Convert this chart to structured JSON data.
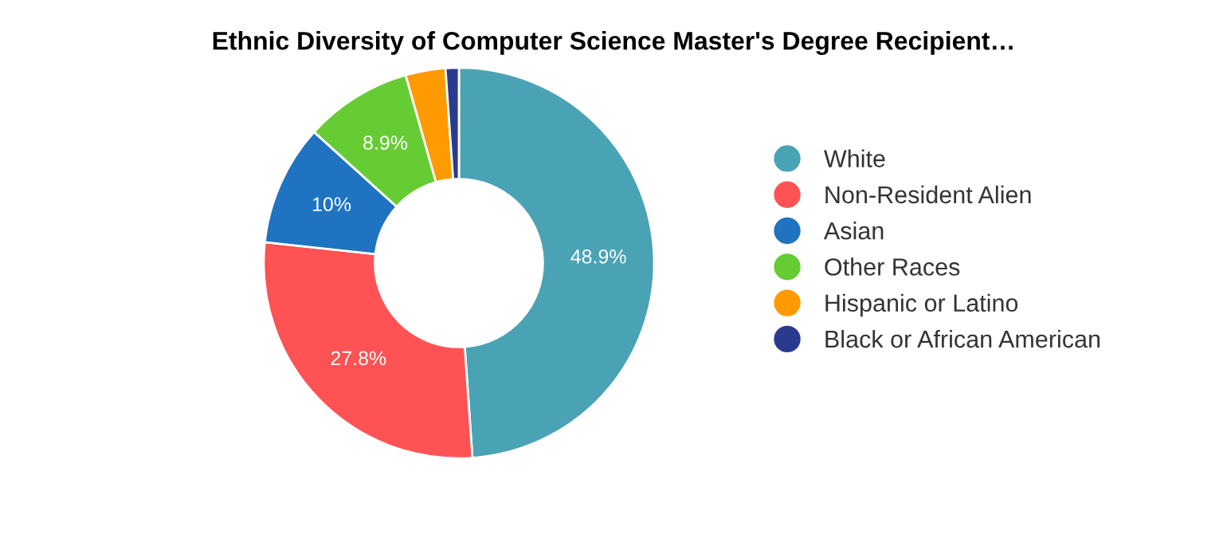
{
  "chart_data": {
    "type": "donut",
    "title": "Ethnic Diversity of Computer Science Master's Degree Recipient…",
    "categories": [
      "White",
      "Non-Resident Alien",
      "Asian",
      "Other Races",
      "Hispanic or Latino",
      "Black or African American"
    ],
    "values": [
      48.9,
      27.8,
      10,
      8.9,
      3.3,
      1.1
    ],
    "colors": [
      "#4aa3b4",
      "#ff5254",
      "#1f73c0",
      "#66cc33",
      "#ff9a00",
      "#2a3b8f"
    ],
    "value_labels": [
      "48.9%",
      "27.8%",
      "10%",
      "8.9%",
      null,
      null
    ],
    "legend": "right"
  }
}
